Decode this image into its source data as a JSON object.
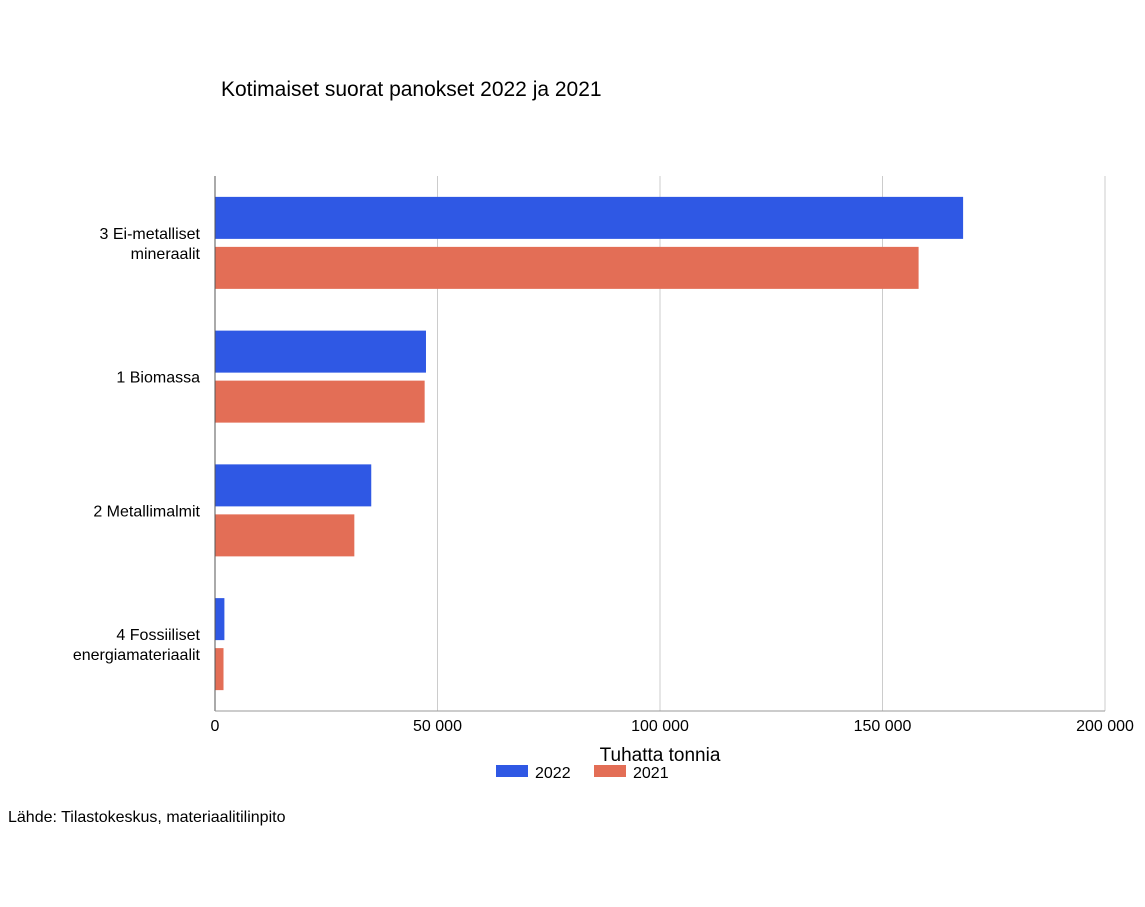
{
  "chart_data": {
    "type": "bar",
    "orientation": "horizontal",
    "title": "Kotimaiset suorat panokset 2022 ja 2021",
    "xlabel": "Tuhatta tonnia",
    "ylabel": "",
    "xlim": [
      0,
      200000
    ],
    "xticks": [
      0,
      50000,
      100000,
      150000,
      200000
    ],
    "xtick_labels": [
      "0",
      "50 000",
      "100 000",
      "150 000",
      "200 000"
    ],
    "grid": true,
    "legend_position": "bottom",
    "categories": [
      [
        "3 Ei-metalliset",
        "mineraalit"
      ],
      [
        "1 Biomassa"
      ],
      [
        "2 Metallimalmit"
      ],
      [
        "4 Fossiiliset",
        "energiamateriaalit"
      ]
    ],
    "series": [
      {
        "name": "2022",
        "color": "#2f58e4",
        "values": [
          168000,
          47300,
          35000,
          2000
        ]
      },
      {
        "name": "2021",
        "color": "#e36e56",
        "values": [
          158000,
          47000,
          31200,
          1800
        ]
      }
    ]
  },
  "source_note": "Lähde: Tilastokeskus, materiaalitilinpito"
}
